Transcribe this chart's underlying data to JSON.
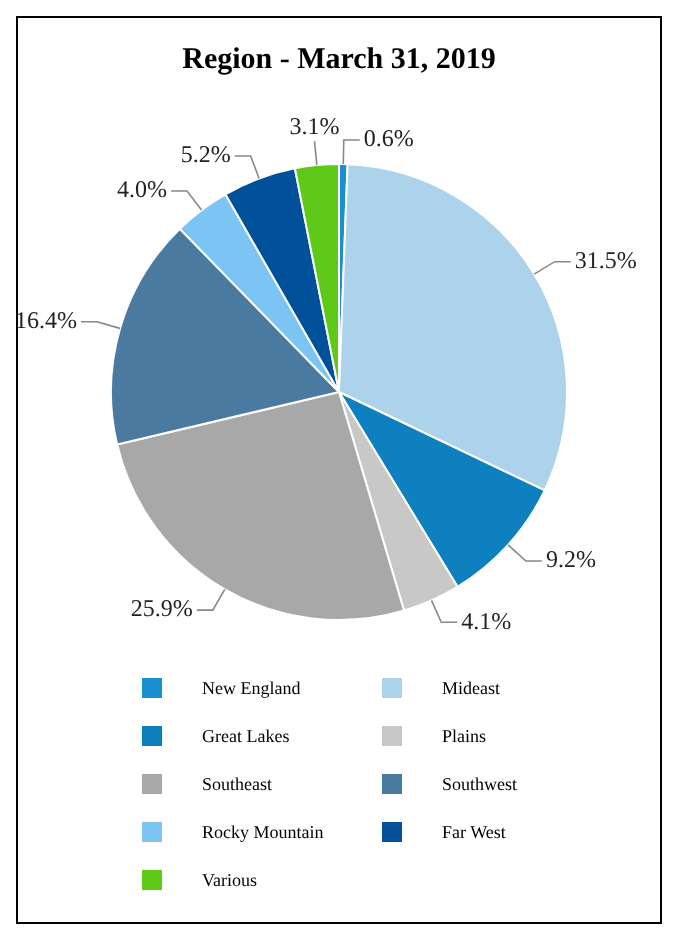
{
  "chart_data": {
    "type": "pie",
    "title": "Region - March 31, 2019",
    "categories": [
      "New England",
      "Mideast",
      "Great Lakes",
      "Plains",
      "Southeast",
      "Southwest",
      "Rocky Mountain",
      "Far West",
      "Various"
    ],
    "values": [
      0.6,
      31.5,
      9.2,
      4.1,
      25.9,
      16.4,
      4.0,
      5.2,
      3.1
    ],
    "value_labels": [
      "0.6%",
      "31.5%",
      "9.2%",
      "4.1%",
      "25.9%",
      "16.4%",
      "4.0%",
      "5.2%",
      "3.1%"
    ],
    "colors": [
      "#1a8fd0",
      "#acd2ec",
      "#0e7fbf",
      "#c8c8c8",
      "#a8a8a8",
      "#4b7aa1",
      "#7cc4f3",
      "#00509a",
      "#5fc919"
    ],
    "legend": "bottom"
  }
}
